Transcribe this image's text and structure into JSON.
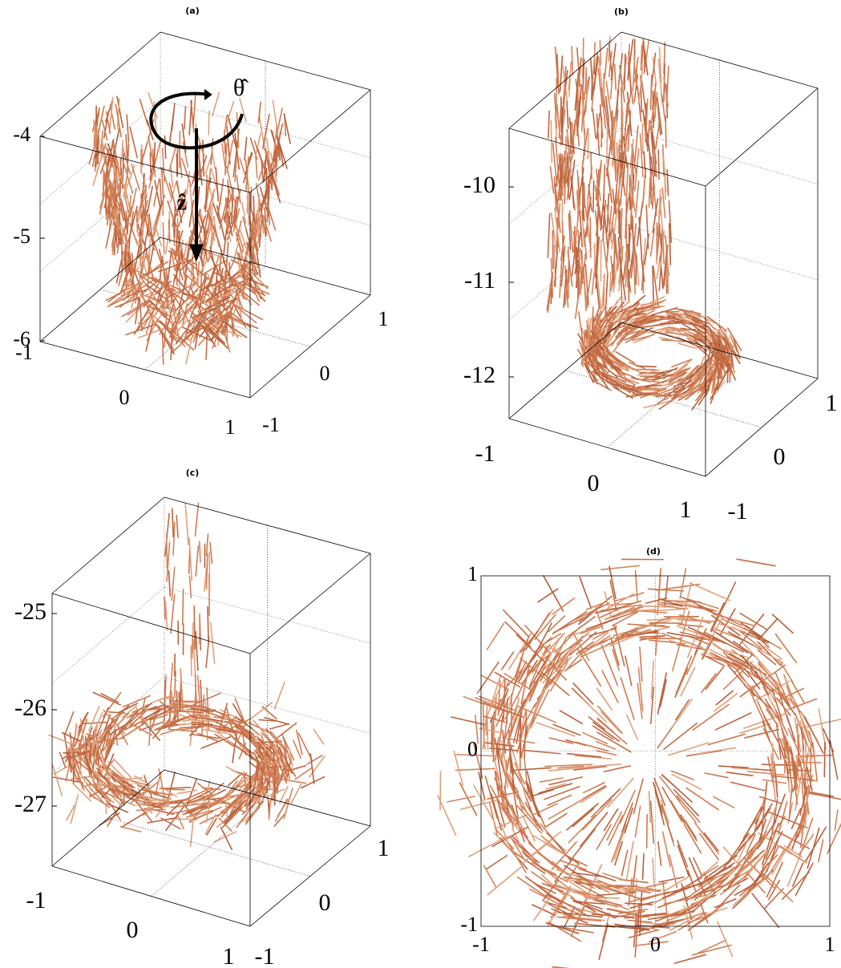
{
  "panels": [
    {
      "title": "(a)",
      "z_ticks": [
        "-4",
        "-5",
        "-6"
      ],
      "x_ticks": [
        "-1",
        "0",
        "1"
      ],
      "y_ticks": [
        "-1",
        "0",
        "1"
      ],
      "annotations": [
        "θ̂",
        "ẑ"
      ]
    },
    {
      "title": "(b)",
      "z_ticks": [
        "-10",
        "-11",
        "-12"
      ],
      "x_ticks": [
        "-1",
        "0",
        "1"
      ],
      "y_ticks": [
        "-1",
        "0",
        "1"
      ]
    },
    {
      "title": "(c)",
      "z_ticks": [
        "-25",
        "-26",
        "-27"
      ],
      "x_ticks": [
        "-1",
        "0",
        "1"
      ],
      "y_ticks": [
        "-1",
        "0",
        "1"
      ]
    },
    {
      "title": "(d)",
      "x_ticks": [
        "-1",
        "0",
        "1"
      ],
      "y_ticks": [
        "1",
        "0",
        "-1"
      ]
    }
  ]
}
